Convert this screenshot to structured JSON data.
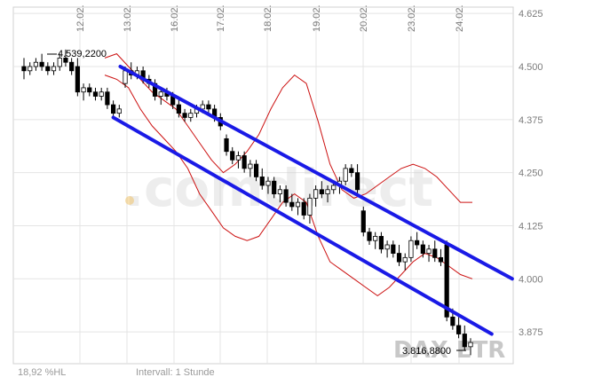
{
  "chart_data": {
    "type": "candlestick",
    "instrument_watermark": "DAX ETR",
    "brand_watermark": ".comdirect",
    "x_tick_labels": [
      "12.02.",
      "13.02.",
      "16.02.",
      "17.02.",
      "18.02.",
      "19.02.",
      "20.02.",
      "23.02.",
      "24.02."
    ],
    "y_tick_labels": [
      "4.625",
      "4.500",
      "4.375",
      "4.250",
      "4.125",
      "4.000",
      "3.875"
    ],
    "ylim": [
      3.8,
      4.64
    ],
    "high_annotation": {
      "text": "4.539,2200",
      "value": 4.5392
    },
    "low_annotation": {
      "text": "3.816,8800",
      "value": 3.8169
    },
    "footer_left": "18,92 %HL",
    "footer_center": "Intervall: 1 Stunde",
    "colors": {
      "channel": "#1a1ae6",
      "bands": "#cc1111",
      "candles": "#000000",
      "grid": "#e4e4e4"
    },
    "candles": [
      [
        4.5,
        4.52,
        4.47,
        4.49
      ],
      [
        4.49,
        4.51,
        4.48,
        4.5
      ],
      [
        4.5,
        4.52,
        4.49,
        4.51
      ],
      [
        4.51,
        4.53,
        4.49,
        4.5
      ],
      [
        4.5,
        4.51,
        4.48,
        4.49
      ],
      [
        4.49,
        4.51,
        4.48,
        4.5
      ],
      [
        4.5,
        4.53,
        4.49,
        4.52
      ],
      [
        4.52,
        4.54,
        4.5,
        4.51
      ],
      [
        4.51,
        4.52,
        4.48,
        4.49
      ],
      [
        4.5,
        4.52,
        4.43,
        4.44
      ],
      [
        4.44,
        4.46,
        4.42,
        4.45
      ],
      [
        4.45,
        4.46,
        4.43,
        4.44
      ],
      [
        4.44,
        4.45,
        4.42,
        4.43
      ],
      [
        4.43,
        4.45,
        4.42,
        4.44
      ],
      [
        4.44,
        4.45,
        4.4,
        4.41
      ],
      [
        4.41,
        4.42,
        4.38,
        4.39
      ],
      [
        4.39,
        4.41,
        4.38,
        4.4
      ],
      [
        4.46,
        4.5,
        4.45,
        4.49
      ],
      [
        4.49,
        4.51,
        4.47,
        4.48
      ],
      [
        4.48,
        4.5,
        4.47,
        4.49
      ],
      [
        4.49,
        4.5,
        4.46,
        4.47
      ],
      [
        4.47,
        4.48,
        4.45,
        4.46
      ],
      [
        4.46,
        4.47,
        4.42,
        4.43
      ],
      [
        4.43,
        4.45,
        4.41,
        4.44
      ],
      [
        4.44,
        4.45,
        4.42,
        4.43
      ],
      [
        4.43,
        4.44,
        4.4,
        4.41
      ],
      [
        4.41,
        4.43,
        4.38,
        4.39
      ],
      [
        4.39,
        4.4,
        4.37,
        4.38
      ],
      [
        4.38,
        4.4,
        4.37,
        4.39
      ],
      [
        4.39,
        4.41,
        4.38,
        4.4
      ],
      [
        4.4,
        4.42,
        4.39,
        4.41
      ],
      [
        4.41,
        4.42,
        4.39,
        4.4
      ],
      [
        4.4,
        4.41,
        4.37,
        4.38
      ],
      [
        4.38,
        4.39,
        4.35,
        4.36
      ],
      [
        4.33,
        4.34,
        4.29,
        4.3
      ],
      [
        4.3,
        4.31,
        4.27,
        4.28
      ],
      [
        4.28,
        4.3,
        4.26,
        4.29
      ],
      [
        4.29,
        4.3,
        4.25,
        4.26
      ],
      [
        4.26,
        4.28,
        4.24,
        4.27
      ],
      [
        4.27,
        4.28,
        4.23,
        4.24
      ],
      [
        4.24,
        4.26,
        4.21,
        4.22
      ],
      [
        4.22,
        4.24,
        4.2,
        4.23
      ],
      [
        4.23,
        4.24,
        4.19,
        4.2
      ],
      [
        4.2,
        4.22,
        4.18,
        4.21
      ],
      [
        4.21,
        4.22,
        4.17,
        4.18
      ],
      [
        4.18,
        4.2,
        4.16,
        4.17
      ],
      [
        4.17,
        4.19,
        4.15,
        4.18
      ],
      [
        4.18,
        4.19,
        4.14,
        4.15
      ],
      [
        4.15,
        4.2,
        4.13,
        4.19
      ],
      [
        4.19,
        4.22,
        4.17,
        4.21
      ],
      [
        4.21,
        4.23,
        4.19,
        4.2
      ],
      [
        4.2,
        4.22,
        4.18,
        4.21
      ],
      [
        4.21,
        4.23,
        4.2,
        4.22
      ],
      [
        4.22,
        4.24,
        4.2,
        4.23
      ],
      [
        4.23,
        4.27,
        4.22,
        4.26
      ],
      [
        4.26,
        4.27,
        4.24,
        4.25
      ],
      [
        4.25,
        4.27,
        4.2,
        4.21
      ],
      [
        4.16,
        4.17,
        4.1,
        4.11
      ],
      [
        4.11,
        4.12,
        4.08,
        4.09
      ],
      [
        4.09,
        4.11,
        4.07,
        4.1
      ],
      [
        4.1,
        4.11,
        4.06,
        4.07
      ],
      [
        4.07,
        4.09,
        4.05,
        4.08
      ],
      [
        4.08,
        4.09,
        4.05,
        4.06
      ],
      [
        4.06,
        4.08,
        4.03,
        4.04
      ],
      [
        4.04,
        4.06,
        4.02,
        4.05
      ],
      [
        4.05,
        4.1,
        4.04,
        4.09
      ],
      [
        4.09,
        4.11,
        4.07,
        4.08
      ],
      [
        4.08,
        4.09,
        4.05,
        4.06
      ],
      [
        4.06,
        4.08,
        4.04,
        4.07
      ],
      [
        4.07,
        4.09,
        4.04,
        4.05
      ],
      [
        4.05,
        4.07,
        4.03,
        4.04
      ],
      [
        4.08,
        4.09,
        3.9,
        3.91
      ],
      [
        3.91,
        3.93,
        3.88,
        3.89
      ],
      [
        3.89,
        3.91,
        3.86,
        3.87
      ],
      [
        3.87,
        3.89,
        3.83,
        3.84
      ],
      [
        3.84,
        3.86,
        3.82,
        3.85
      ]
    ],
    "channel_upper": [
      [
        4.5,
        4.0
      ],
      [
        4.52,
        3.99
      ]
    ],
    "channel_lower": [
      [
        4.38,
        3.87
      ],
      [
        4.39,
        3.86
      ]
    ],
    "band_upper": [
      4.52,
      4.53,
      4.5,
      4.47,
      4.44,
      4.42,
      4.4,
      4.36,
      4.32,
      4.28,
      4.25,
      4.27,
      4.3,
      4.34,
      4.4,
      4.45,
      4.48,
      4.46,
      4.37,
      4.27,
      4.21,
      4.19,
      4.2,
      4.22,
      4.24,
      4.26,
      4.27,
      4.26,
      4.24,
      4.21,
      4.18,
      4.18
    ],
    "band_lower": [
      4.48,
      4.47,
      4.45,
      4.4,
      4.36,
      4.33,
      4.3,
      4.26,
      4.2,
      4.16,
      4.12,
      4.1,
      4.09,
      4.1,
      4.14,
      4.18,
      4.2,
      4.18,
      4.1,
      4.04,
      4.02,
      4.0,
      3.98,
      3.96,
      3.98,
      4.01,
      4.04,
      4.06,
      4.05,
      4.03,
      4.01,
      4.0
    ]
  }
}
